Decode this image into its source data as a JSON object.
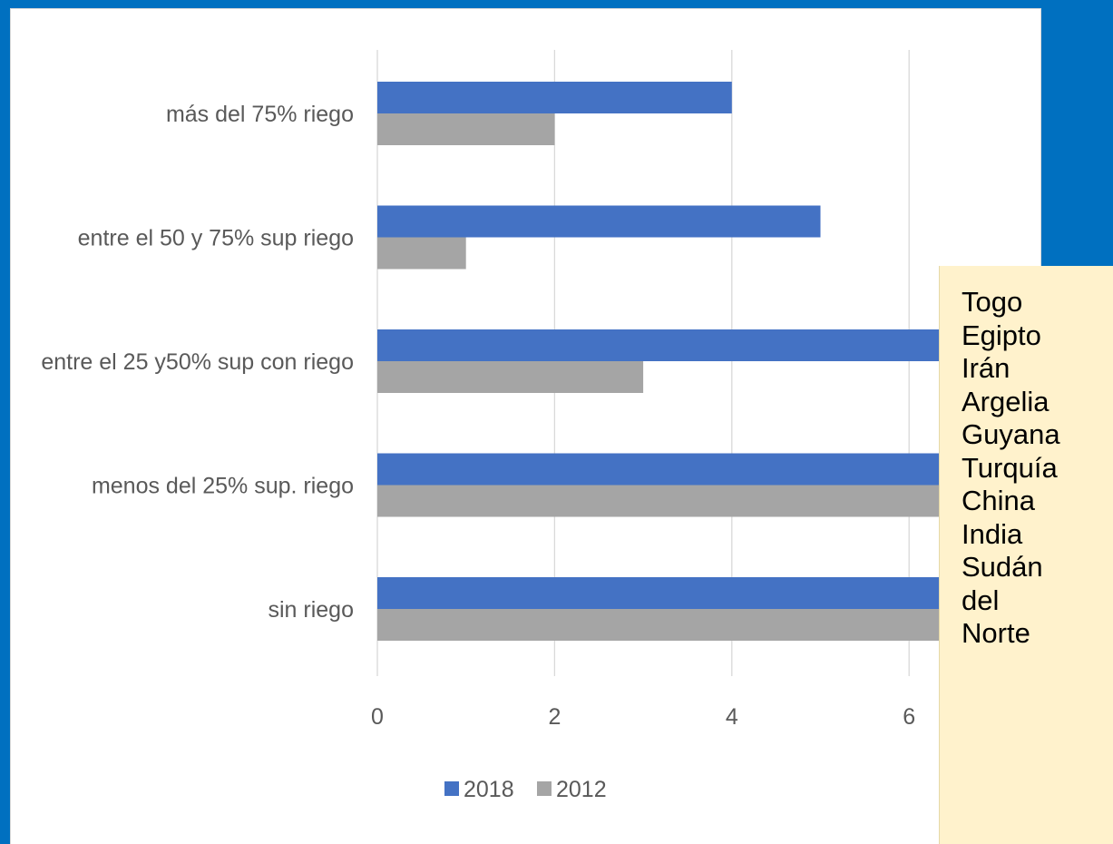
{
  "chart_data": {
    "type": "bar",
    "orientation": "horizontal",
    "categories": [
      "más del 75% riego",
      "entre el 50 y 75% sup riego",
      "entre el 25 y50% sup con riego",
      "menos del 25% sup. riego",
      "sin riego"
    ],
    "series": [
      {
        "name": "2018",
        "color": "#4472c4",
        "values": [
          4,
          5,
          7,
          13,
          7
        ]
      },
      {
        "name": "2012",
        "color": "#a5a5a5",
        "values": [
          2,
          1,
          3,
          8,
          11
        ]
      }
    ],
    "xlim": [
      0,
      14
    ],
    "xticks": [
      "0",
      "2",
      "4",
      "6",
      "8",
      "10",
      "12"
    ],
    "grid": true,
    "legend_position": "bottom"
  },
  "note": {
    "lines": [
      "Togo",
      "Egipto",
      "Irán",
      "Argelia",
      "Guyana",
      "Turquía",
      "China",
      "India",
      "Sudán",
      "del",
      "Norte"
    ],
    "background": "#fff2cc"
  },
  "background_color": "#0070c0"
}
